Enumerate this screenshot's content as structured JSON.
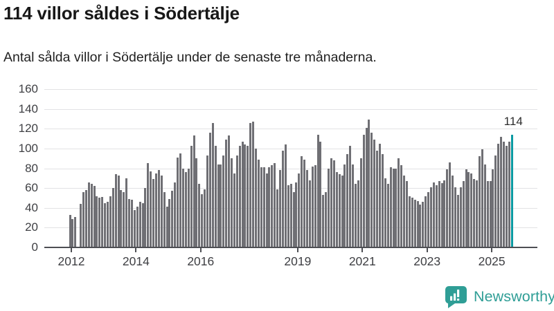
{
  "header": {
    "title": "114 villor såldes i Södertälje",
    "subtitle": "Antal sålda villor i Södertälje under de senaste tre månaderna."
  },
  "branding": {
    "name": "Newsworthy",
    "logo_color": "#2f9e96",
    "logo_icon": "bar-chart-speech-bubble"
  },
  "chart_data": {
    "type": "bar",
    "title": "114 villor såldes i Södertälje",
    "subtitle": "Antal sålda villor i Södertälje under de senaste tre månaderna.",
    "frequency": "monthly",
    "x_start": "2012-01",
    "x_end": "2025-09",
    "ylim": [
      0,
      160
    ],
    "grid": true,
    "yticks": [
      0,
      20,
      40,
      60,
      80,
      100,
      120,
      140,
      160
    ],
    "xticks": [
      2012,
      2014,
      2016,
      2019,
      2021,
      2023,
      2025
    ],
    "bar_color": "#6f6f74",
    "axis_color": "#4d4e53",
    "values": [
      33,
      29,
      31,
      0,
      44,
      56,
      58,
      66,
      64,
      62,
      52,
      50,
      51,
      45,
      46,
      52,
      60,
      74,
      73,
      58,
      56,
      70,
      49,
      48,
      38,
      41,
      46,
      45,
      60,
      85,
      77,
      69,
      75,
      78,
      73,
      56,
      41,
      49,
      57,
      66,
      91,
      95,
      80,
      76,
      80,
      103,
      113,
      90,
      64,
      54,
      59,
      93,
      116,
      126,
      103,
      84,
      84,
      93,
      109,
      113,
      90,
      75,
      93,
      103,
      107,
      104,
      103,
      126,
      127,
      100,
      89,
      81,
      81,
      75,
      81,
      83,
      85,
      59,
      78,
      98,
      104,
      63,
      64,
      56,
      66,
      75,
      92,
      89,
      78,
      68,
      82,
      83,
      114,
      107,
      53,
      56,
      80,
      90,
      88,
      76,
      74,
      73,
      84,
      94,
      103,
      84,
      64,
      68,
      90,
      114,
      121,
      129,
      116,
      109,
      98,
      105,
      94,
      70,
      64,
      81,
      80,
      80,
      90,
      83,
      73,
      67,
      52,
      50,
      48,
      47,
      43,
      46,
      52,
      56,
      61,
      66,
      63,
      67,
      65,
      68,
      79,
      86,
      73,
      61,
      53,
      61,
      67,
      79,
      76,
      75,
      69,
      68,
      92,
      99,
      84,
      67,
      67,
      79,
      93,
      105,
      112,
      107,
      103,
      107,
      114
    ],
    "highlight": {
      "index": 164,
      "value": 114,
      "label": "114",
      "color": "#0b9aa2"
    }
  }
}
